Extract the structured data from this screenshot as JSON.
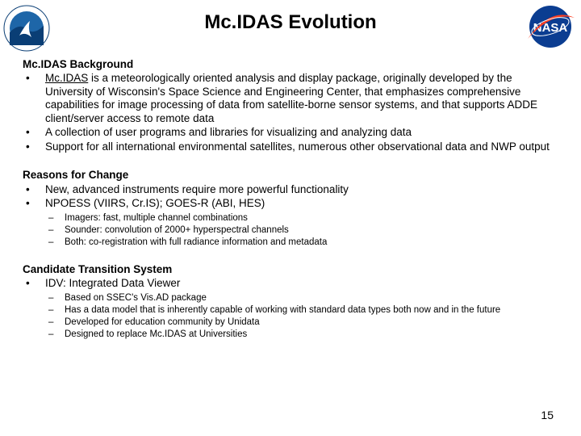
{
  "title": "Mc.IDAS Evolution",
  "page_number": "15",
  "logos": {
    "left": {
      "name": "noaa-logo",
      "outer_color": "#0a3e75",
      "inner_blue": "#1e66a8",
      "inner_white": "#ffffff",
      "top_text": "NATIONAL OCEANIC AND ATMOSPHERIC",
      "bottom_text": "ADMINISTRATION"
    },
    "right": {
      "name": "nasa-logo",
      "circle_color": "#0b3d91",
      "swoosh_color": "#fc3d21",
      "text": "NASA",
      "text_color": "#ffffff"
    }
  },
  "sections": [
    {
      "heading": "Mc.IDAS Background",
      "bullets": [
        {
          "html": "<span class='underline'>Mc.IDAS</span> is a meteorologically oriented analysis and display package, originally developed by the University of Wisconsin's Space Science and Engineering Center, that emphasizes comprehensive capabilities for image processing of data from satellite-borne sensor systems, and that supports ADDE client/server access to remote data"
        },
        {
          "text": "A collection of user programs and libraries for visualizing and analyzing data"
        },
        {
          "text": "Support for all international environmental satellites, numerous other observational data and NWP output"
        }
      ]
    },
    {
      "heading": "Reasons for Change",
      "bullets": [
        {
          "text": "New, advanced instruments require more powerful functionality"
        },
        {
          "text": "NPOESS (VIIRS, Cr.IS); GOES-R (ABI, HES)",
          "sub": [
            "Imagers: fast, multiple channel combinations",
            "Sounder: convolution of 2000+ hyperspectral channels",
            "Both: co-registration with full radiance information and metadata"
          ]
        }
      ]
    },
    {
      "heading": "Candidate Transition System",
      "bullets": [
        {
          "text": "IDV: Integrated Data Viewer",
          "sub": [
            "Based on SSEC's Vis.AD package",
            "Has a data model that is inherently capable of working with standard data types both now and in the future",
            "Developed for education community by Unidata",
            "Designed to replace Mc.IDAS at Universities"
          ]
        }
      ]
    }
  ]
}
